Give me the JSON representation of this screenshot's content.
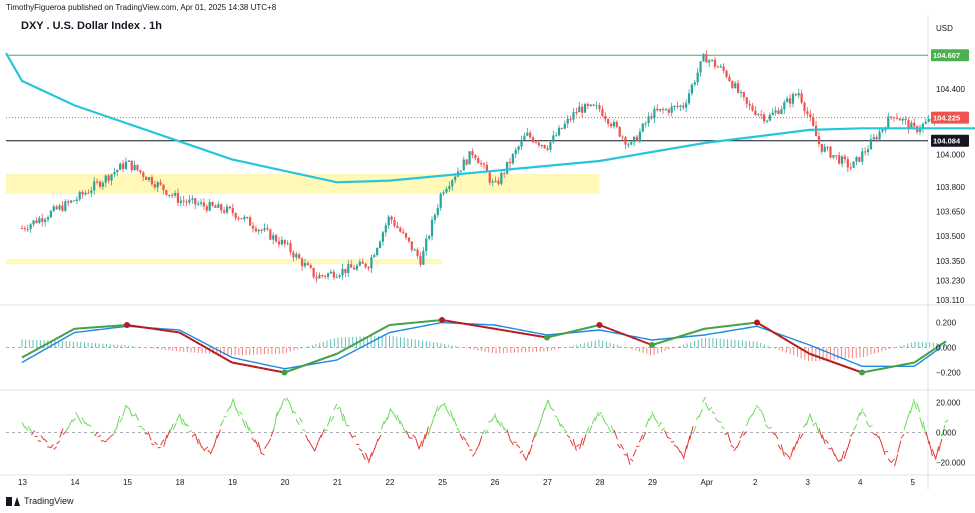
{
  "header": {
    "published_line": "TimothyFigueroa published on TradingView.com, Apr 01, 2025 14:38 UTC+8",
    "title": "DXY . U.S. Dollar Index . 1h",
    "currency": "USD",
    "brand": "TradingView"
  },
  "colors": {
    "up": "#26a69a",
    "down": "#ef5350",
    "sma": "#26c6da",
    "resistance": "#4caf50",
    "zone": "#fff59d",
    "fast_line": "#1e88e5",
    "wave_up": "#43a047",
    "wave_down": "#b71c1c",
    "osc_up": "#66dd55",
    "osc_down": "#e53935"
  },
  "chart_data": [
    {
      "type": "candlestick",
      "title": "DXY . U.S. Dollar Index . 1h",
      "x_ticks": [
        "13",
        "14",
        "15",
        "18",
        "19",
        "20",
        "21",
        "22",
        "25",
        "26",
        "27",
        "28",
        "29",
        "Apr",
        "2",
        "3",
        "4",
        "5"
      ],
      "y_ticks": [
        104.4,
        104.0,
        103.8,
        103.65,
        103.5,
        103.35,
        103.23,
        103.11
      ],
      "ylim": [
        103.11,
        104.7
      ],
      "price_labels": [
        {
          "label": "104.607",
          "value": 104.607,
          "kind": "resistance"
        },
        {
          "label": "104.225",
          "value": 104.225,
          "kind": "last_price"
        },
        {
          "label": "104.084",
          "value": 104.084,
          "kind": "support"
        }
      ],
      "support_zones": [
        {
          "from": 103.76,
          "to": 103.88,
          "start": "13",
          "end": "24"
        },
        {
          "from": 103.33,
          "to": 103.36,
          "start": "13",
          "end": "21"
        }
      ],
      "moving_average": {
        "name": "",
        "start": 104.62,
        "points": [
          [
            13,
            104.45
          ],
          [
            14,
            104.3
          ],
          [
            17,
            103.97
          ],
          [
            19,
            103.83
          ],
          [
            20,
            103.84
          ],
          [
            24,
            103.96
          ],
          [
            26,
            104.07
          ],
          [
            27,
            104.11
          ],
          [
            28,
            104.15
          ],
          [
            29,
            104.16
          ],
          [
            32,
            104.16
          ]
        ]
      },
      "close_path": [
        [
          13,
          103.55
        ],
        [
          14,
          103.72
        ],
        [
          15,
          103.95
        ],
        [
          16,
          103.72
        ],
        [
          17,
          103.65
        ],
        [
          18,
          103.45
        ],
        [
          18.6,
          103.25
        ],
        [
          19.6,
          103.33
        ],
        [
          20,
          103.62
        ],
        [
          20.6,
          103.35
        ],
        [
          21,
          103.78
        ],
        [
          21.6,
          104.02
        ],
        [
          22,
          103.8
        ],
        [
          22.6,
          104.12
        ],
        [
          23,
          104.05
        ],
        [
          23.6,
          104.28
        ],
        [
          24,
          104.28
        ],
        [
          24.6,
          104.05
        ],
        [
          25,
          104.25
        ],
        [
          25.6,
          104.3
        ],
        [
          26,
          104.6
        ],
        [
          26.4,
          104.5
        ],
        [
          26.8,
          104.3
        ],
        [
          27.2,
          104.22
        ],
        [
          27.8,
          104.38
        ],
        [
          28.2,
          104.05
        ],
        [
          28.8,
          103.92
        ],
        [
          29.2,
          104.08
        ],
        [
          29.6,
          104.25
        ],
        [
          30,
          104.15
        ],
        [
          30.4,
          104.225
        ]
      ]
    },
    {
      "type": "line",
      "ylim": [
        -0.3,
        0.3
      ],
      "y_ticks": [
        0.2,
        0.0,
        -0.2
      ],
      "y_tick_labels": [
        "0.200",
        "0.000",
        "−0.200"
      ],
      "series": [
        {
          "values": [
            [
              13,
              -0.08
            ],
            [
              14,
              0.15
            ],
            [
              15,
              0.18
            ],
            [
              16,
              0.12
            ],
            [
              17,
              -0.12
            ],
            [
              18,
              -0.2
            ],
            [
              19,
              -0.05
            ],
            [
              20,
              0.18
            ],
            [
              21,
              0.22
            ],
            [
              22,
              0.15
            ],
            [
              23,
              0.08
            ],
            [
              24,
              0.18
            ],
            [
              25,
              0.02
            ],
            [
              26,
              0.15
            ],
            [
              27,
              0.2
            ],
            [
              28,
              -0.05
            ],
            [
              29,
              -0.2
            ],
            [
              30,
              -0.12
            ],
            [
              30.6,
              0.05
            ]
          ]
        },
        {
          "values": [
            [
              13,
              -0.12
            ],
            [
              14,
              0.12
            ],
            [
              15,
              0.17
            ],
            [
              16,
              0.14
            ],
            [
              17,
              -0.08
            ],
            [
              18,
              -0.17
            ],
            [
              19,
              -0.1
            ],
            [
              20,
              0.12
            ],
            [
              21,
              0.2
            ],
            [
              22,
              0.18
            ],
            [
              23,
              0.1
            ],
            [
              24,
              0.14
            ],
            [
              25,
              0.06
            ],
            [
              26,
              0.1
            ],
            [
              27,
              0.17
            ],
            [
              28,
              0.02
            ],
            [
              29,
              -0.15
            ],
            [
              30,
              -0.15
            ],
            [
              30.6,
              0.03
            ]
          ]
        }
      ]
    },
    {
      "type": "line",
      "ylim": [
        -25,
        25
      ],
      "y_ticks": [
        20,
        0,
        -20
      ],
      "y_tick_labels": [
        "20.000",
        "0.000",
        "−20.000"
      ],
      "series": [
        {
          "values": [
            [
              13,
              5
            ],
            [
              13.6,
              -10
            ],
            [
              14,
              12
            ],
            [
              14.6,
              -8
            ],
            [
              15,
              18
            ],
            [
              15.6,
              -12
            ],
            [
              16,
              10
            ],
            [
              16.6,
              -15
            ],
            [
              17,
              22
            ],
            [
              17.6,
              -15
            ],
            [
              18,
              25
            ],
            [
              18.6,
              -12
            ],
            [
              19,
              18
            ],
            [
              19.6,
              -20
            ],
            [
              20,
              15
            ],
            [
              20.6,
              -10
            ],
            [
              21,
              22
            ],
            [
              21.6,
              -15
            ],
            [
              22,
              12
            ],
            [
              22.6,
              -18
            ],
            [
              23,
              20
            ],
            [
              23.6,
              -12
            ],
            [
              24,
              15
            ],
            [
              24.6,
              -20
            ],
            [
              25,
              12
            ],
            [
              25.6,
              -15
            ],
            [
              26,
              22
            ],
            [
              26.6,
              -12
            ],
            [
              27,
              18
            ],
            [
              27.6,
              -18
            ],
            [
              28,
              10
            ],
            [
              28.6,
              -20
            ],
            [
              29,
              15
            ],
            [
              29.6,
              -22
            ],
            [
              30,
              22
            ],
            [
              30.4,
              -20
            ],
            [
              30.6,
              10
            ]
          ]
        }
      ]
    }
  ]
}
